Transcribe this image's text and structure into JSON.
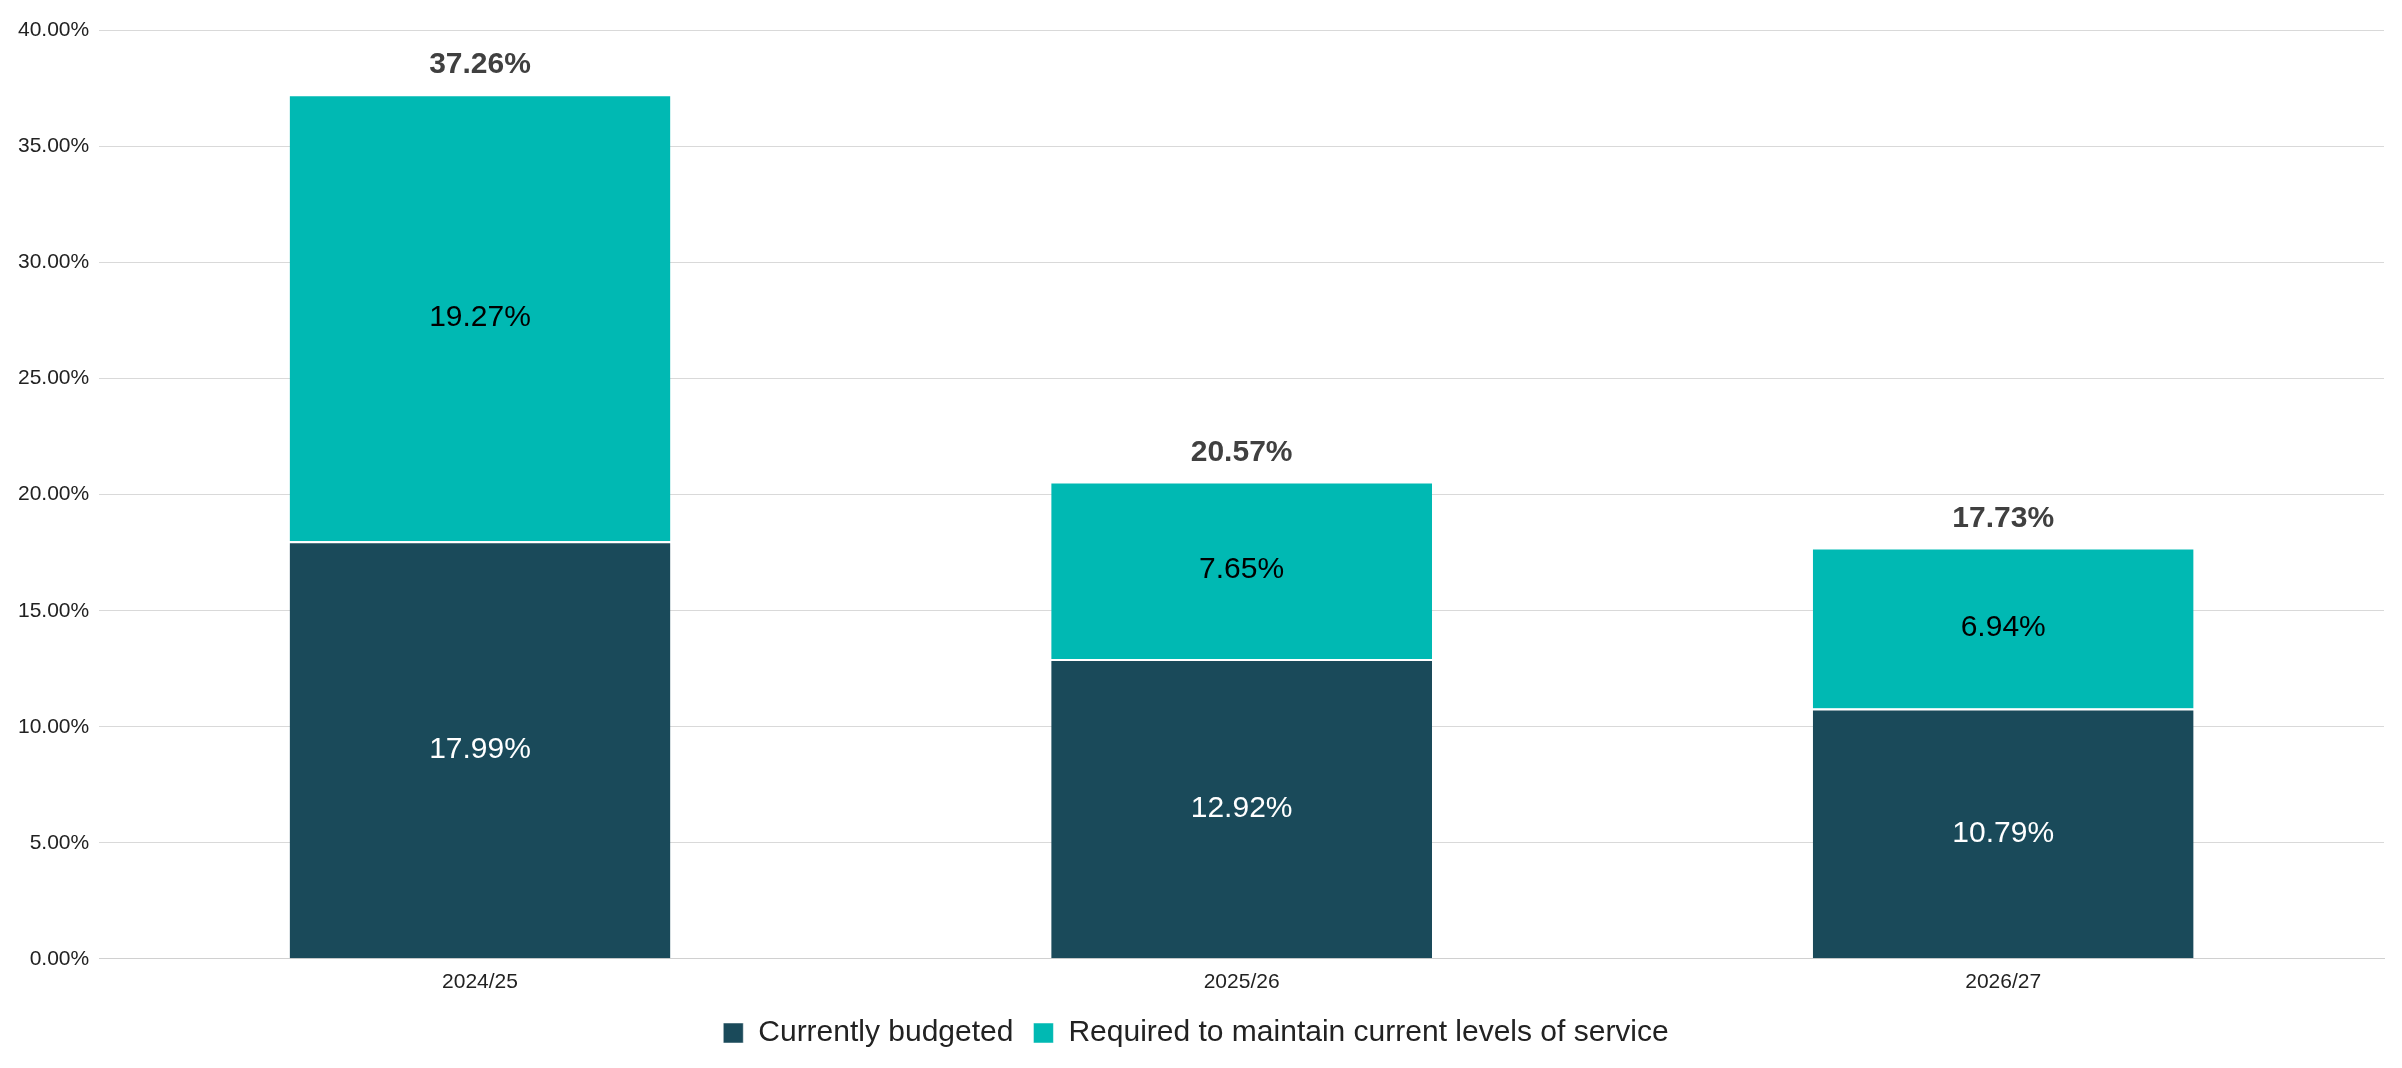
{
  "chart_data": {
    "type": "bar",
    "stacked": true,
    "categories": [
      "2024/25",
      "2025/26",
      "2026/27"
    ],
    "series": [
      {
        "name": "Currently budgeted",
        "color": "#1a4a5a",
        "values": [
          17.99,
          12.92,
          10.79
        ],
        "value_labels": [
          "17.99%",
          "12.92%",
          "10.79%"
        ]
      },
      {
        "name": "Required to maintain current levels of service",
        "color": "#00b9b3",
        "values": [
          19.27,
          7.65,
          6.94
        ],
        "value_labels": [
          "19.27%",
          "7.65%",
          "6.94%"
        ]
      }
    ],
    "totals": [
      "37.26%",
      "20.57%",
      "17.73%"
    ],
    "ylim": [
      0,
      40
    ],
    "yticks": [
      {
        "value": 0,
        "label": "0.00%"
      },
      {
        "value": 5,
        "label": "5.00%"
      },
      {
        "value": 10,
        "label": "10.00%"
      },
      {
        "value": 15,
        "label": "15.00%"
      },
      {
        "value": 20,
        "label": "20.00%"
      },
      {
        "value": 25,
        "label": "25.00%"
      },
      {
        "value": 30,
        "label": "30.00%"
      },
      {
        "value": 35,
        "label": "35.00%"
      },
      {
        "value": 40,
        "label": "40.00%"
      }
    ],
    "grid": "y",
    "legend": "bottom"
  }
}
